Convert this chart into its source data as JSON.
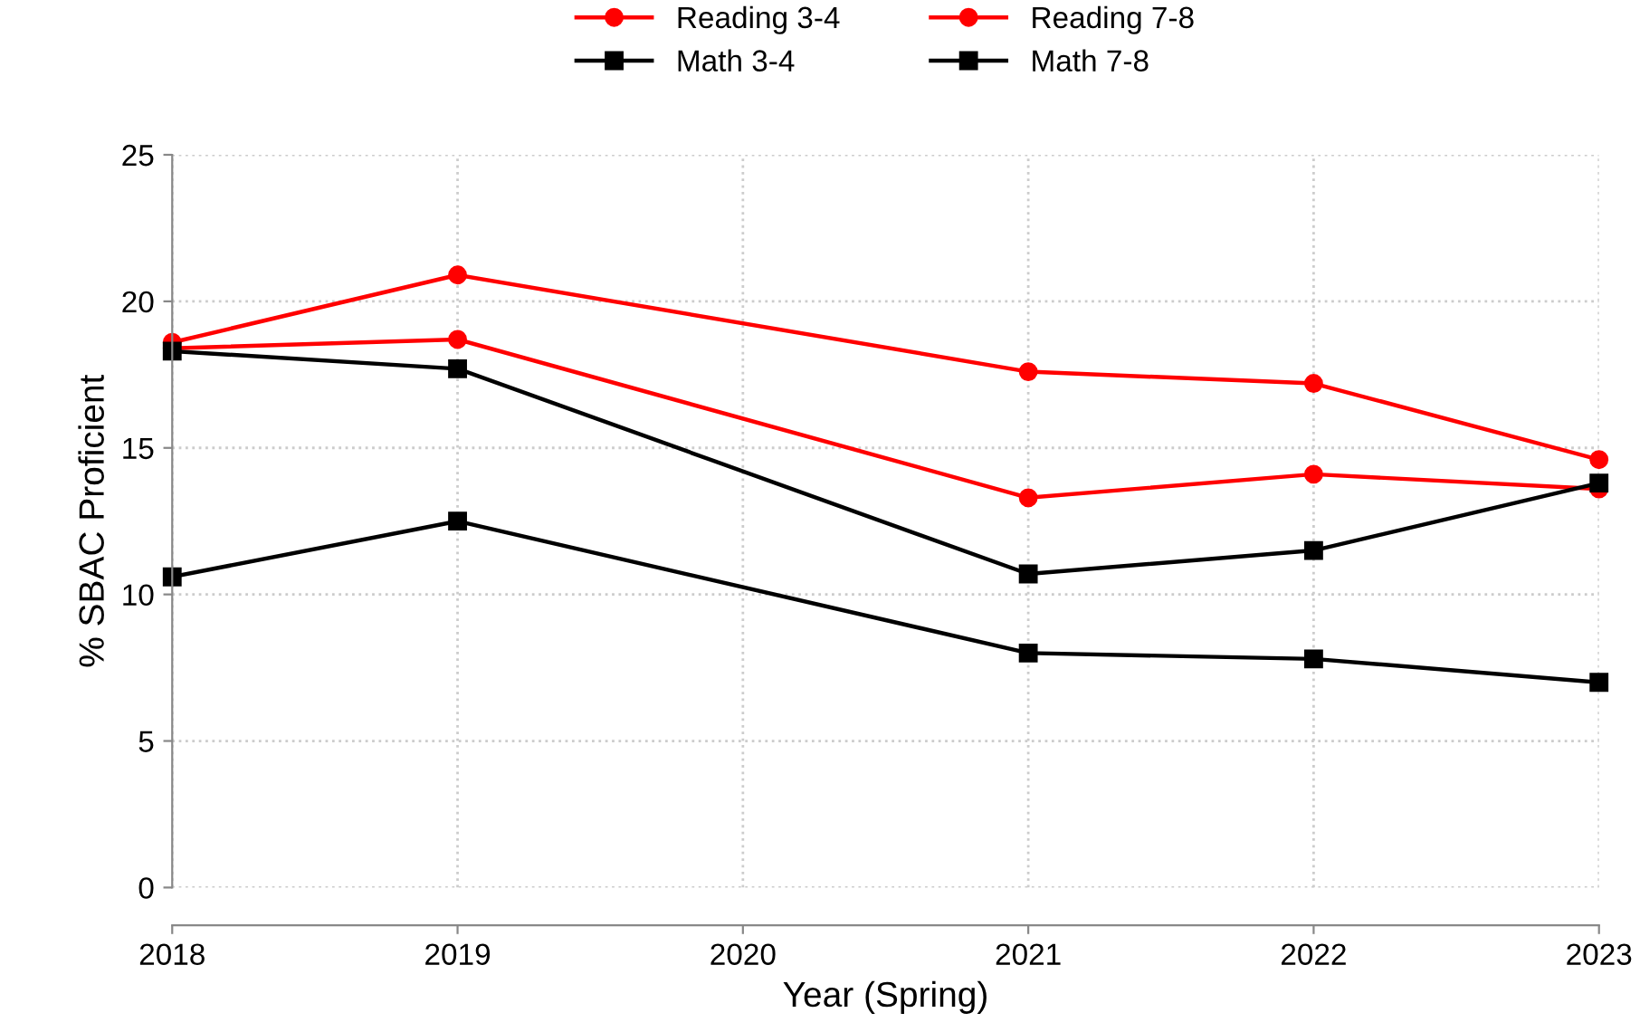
{
  "chart_data": {
    "type": "line",
    "xlabel": "Year (Spring)",
    "ylabel": "% SBAC Proficient",
    "xlim": [
      2018,
      2023
    ],
    "xticks": [
      2018,
      2019,
      2020,
      2021,
      2022,
      2023
    ],
    "ylim": [
      0,
      25
    ],
    "yticks": [
      0,
      5,
      10,
      15,
      20,
      25
    ],
    "grid": true,
    "legend": "top",
    "line_style": "solid",
    "series": [
      {
        "name": "Reading 3-4",
        "color": "#ff0000",
        "marker": "circle",
        "x": [
          2018,
          2019,
          2021,
          2022,
          2023
        ],
        "values": [
          18.4,
          18.7,
          13.3,
          14.1,
          13.6
        ]
      },
      {
        "name": "Reading 7-8",
        "color": "#ff0000",
        "marker": "circle",
        "x": [
          2018,
          2019,
          2021,
          2022,
          2023
        ],
        "values": [
          18.6,
          20.9,
          17.6,
          17.2,
          14.6
        ]
      },
      {
        "name": "Math 3-4",
        "color": "#000000",
        "marker": "square",
        "x": [
          2018,
          2019,
          2021,
          2022,
          2023
        ],
        "values": [
          18.3,
          17.7,
          10.7,
          11.5,
          13.8
        ]
      },
      {
        "name": "Math 7-8",
        "color": "#000000",
        "marker": "square",
        "x": [
          2018,
          2019,
          2021,
          2022,
          2023
        ],
        "values": [
          10.6,
          12.5,
          8.0,
          7.8,
          7.0
        ]
      }
    ]
  }
}
